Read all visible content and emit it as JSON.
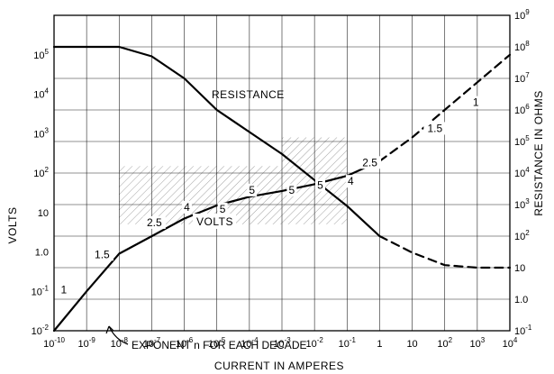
{
  "chart_data": {
    "type": "line",
    "xlabel": "CURRENT IN AMPERES",
    "ylabel": "VOLTS",
    "y2label": "RESISTANCE IN OHMS",
    "x_scale": "log",
    "y_scale": "log",
    "y2_scale": "log",
    "xlim": [
      1e-10,
      10000
    ],
    "ylim": [
      0.01,
      1000000
    ],
    "y2lim": [
      0.1,
      1000000000
    ],
    "grid": true,
    "x_ticks": [
      {
        "base": "10",
        "exp": "-10"
      },
      {
        "base": "10",
        "exp": "-9"
      },
      {
        "base": "10",
        "exp": "-8"
      },
      {
        "base": "10",
        "exp": "-7"
      },
      {
        "base": "10",
        "exp": "-6"
      },
      {
        "base": "10",
        "exp": "-5"
      },
      {
        "base": "10",
        "exp": "-4"
      },
      {
        "base": "10",
        "exp": "-3"
      },
      {
        "base": "10",
        "exp": "-2"
      },
      {
        "base": "10",
        "exp": "-1"
      },
      {
        "base": "1",
        "exp": ""
      },
      {
        "base": "10",
        "exp": ""
      },
      {
        "base": "10",
        "exp": "2"
      },
      {
        "base": "10",
        "exp": "3"
      },
      {
        "base": "10",
        "exp": "4"
      }
    ],
    "y_ticks": [
      {
        "value": 0.01,
        "base": "10",
        "exp": "-2"
      },
      {
        "value": 0.1,
        "base": "10",
        "exp": "-1"
      },
      {
        "value": 1,
        "base": "1.0",
        "exp": ""
      },
      {
        "value": 10,
        "base": "10",
        "exp": ""
      },
      {
        "value": 100,
        "base": "10",
        "exp": "2"
      },
      {
        "value": 1000,
        "base": "10",
        "exp": "3"
      },
      {
        "value": 10000,
        "base": "10",
        "exp": "4"
      },
      {
        "value": 100000,
        "base": "10",
        "exp": "5"
      }
    ],
    "y2_ticks": [
      {
        "value": 0.1,
        "base": "10",
        "exp": "-1"
      },
      {
        "value": 1,
        "base": "1.0",
        "exp": ""
      },
      {
        "value": 10,
        "base": "10",
        "exp": ""
      },
      {
        "value": 100,
        "base": "10",
        "exp": "2"
      },
      {
        "value": 1000,
        "base": "10",
        "exp": "3"
      },
      {
        "value": 10000,
        "base": "10",
        "exp": "4"
      },
      {
        "value": 100000,
        "base": "10",
        "exp": "5"
      },
      {
        "value": 1000000,
        "base": "10",
        "exp": "6"
      },
      {
        "value": 10000000,
        "base": "10",
        "exp": "7"
      },
      {
        "value": 100000000,
        "base": "10",
        "exp": "8"
      },
      {
        "value": 1000000000,
        "base": "10",
        "exp": "9"
      }
    ],
    "series": [
      {
        "name": "VOLTS",
        "axis": "left",
        "solid": [
          [
            1e-10,
            0.01
          ],
          [
            1e-09,
            0.1
          ],
          [
            1e-08,
            0.9
          ],
          [
            1e-07,
            2.5
          ],
          [
            1e-06,
            7
          ],
          [
            1e-05,
            15
          ],
          [
            0.0001,
            25
          ],
          [
            0.001,
            35
          ],
          [
            0.01,
            52
          ],
          [
            0.1,
            85
          ],
          [
            1,
            200
          ]
        ],
        "dashed": [
          [
            1,
            200
          ],
          [
            10,
            800
          ],
          [
            100,
            4000
          ],
          [
            1000,
            20000
          ],
          [
            10000,
            100000
          ]
        ]
      },
      {
        "name": "RESISTANCE",
        "axis": "right",
        "solid": [
          [
            1e-10,
            100000000
          ],
          [
            1e-09,
            100000000
          ],
          [
            1e-08,
            100000000
          ],
          [
            1e-07,
            50000000
          ],
          [
            1e-06,
            10000000
          ],
          [
            1e-05,
            1000000
          ],
          [
            0.0001,
            200000
          ],
          [
            0.001,
            40000
          ],
          [
            0.01,
            6000
          ],
          [
            0.1,
            900
          ],
          [
            1,
            100
          ]
        ],
        "dashed": [
          [
            1,
            100
          ],
          [
            10,
            30
          ],
          [
            100,
            12
          ],
          [
            1000,
            10
          ],
          [
            10000,
            10
          ]
        ]
      }
    ],
    "annotations": [
      {
        "text": "1",
        "x": 2e-10,
        "y": 0.09,
        "axis": "left"
      },
      {
        "text": "1.5",
        "x": 3e-09,
        "y": 0.7,
        "axis": "left"
      },
      {
        "text": "2.5",
        "x": 1.2e-07,
        "y": 4.5,
        "axis": "left"
      },
      {
        "text": "4",
        "x": 1.2e-06,
        "y": 11,
        "axis": "left"
      },
      {
        "text": "5",
        "x": 1.5e-05,
        "y": 10,
        "axis": "left"
      },
      {
        "text": "5",
        "x": 0.00012,
        "y": 30,
        "axis": "left"
      },
      {
        "text": "5",
        "x": 0.002,
        "y": 30,
        "axis": "left"
      },
      {
        "text": "5",
        "x": 0.015,
        "y": 40,
        "axis": "left"
      },
      {
        "text": "4",
        "x": 0.13,
        "y": 50,
        "axis": "left"
      },
      {
        "text": "2.5",
        "x": 0.5,
        "y": 150,
        "axis": "left"
      },
      {
        "text": "1.5",
        "x": 50,
        "y": 1100,
        "axis": "left"
      },
      {
        "text": "1",
        "x": 900,
        "y": 5000,
        "axis": "left"
      }
    ],
    "series_labels": {
      "resistance": "RESISTANCE",
      "volts": "VOLTS"
    },
    "exponent_note": "EXPONENT n FOR EACH DECADE",
    "shaded_regions": [
      {
        "x": [
          1e-08,
          0.1
        ],
        "y": [
          5,
          150
        ]
      },
      {
        "x": [
          0.001,
          0.1
        ],
        "y": [
          150,
          800
        ]
      }
    ]
  }
}
